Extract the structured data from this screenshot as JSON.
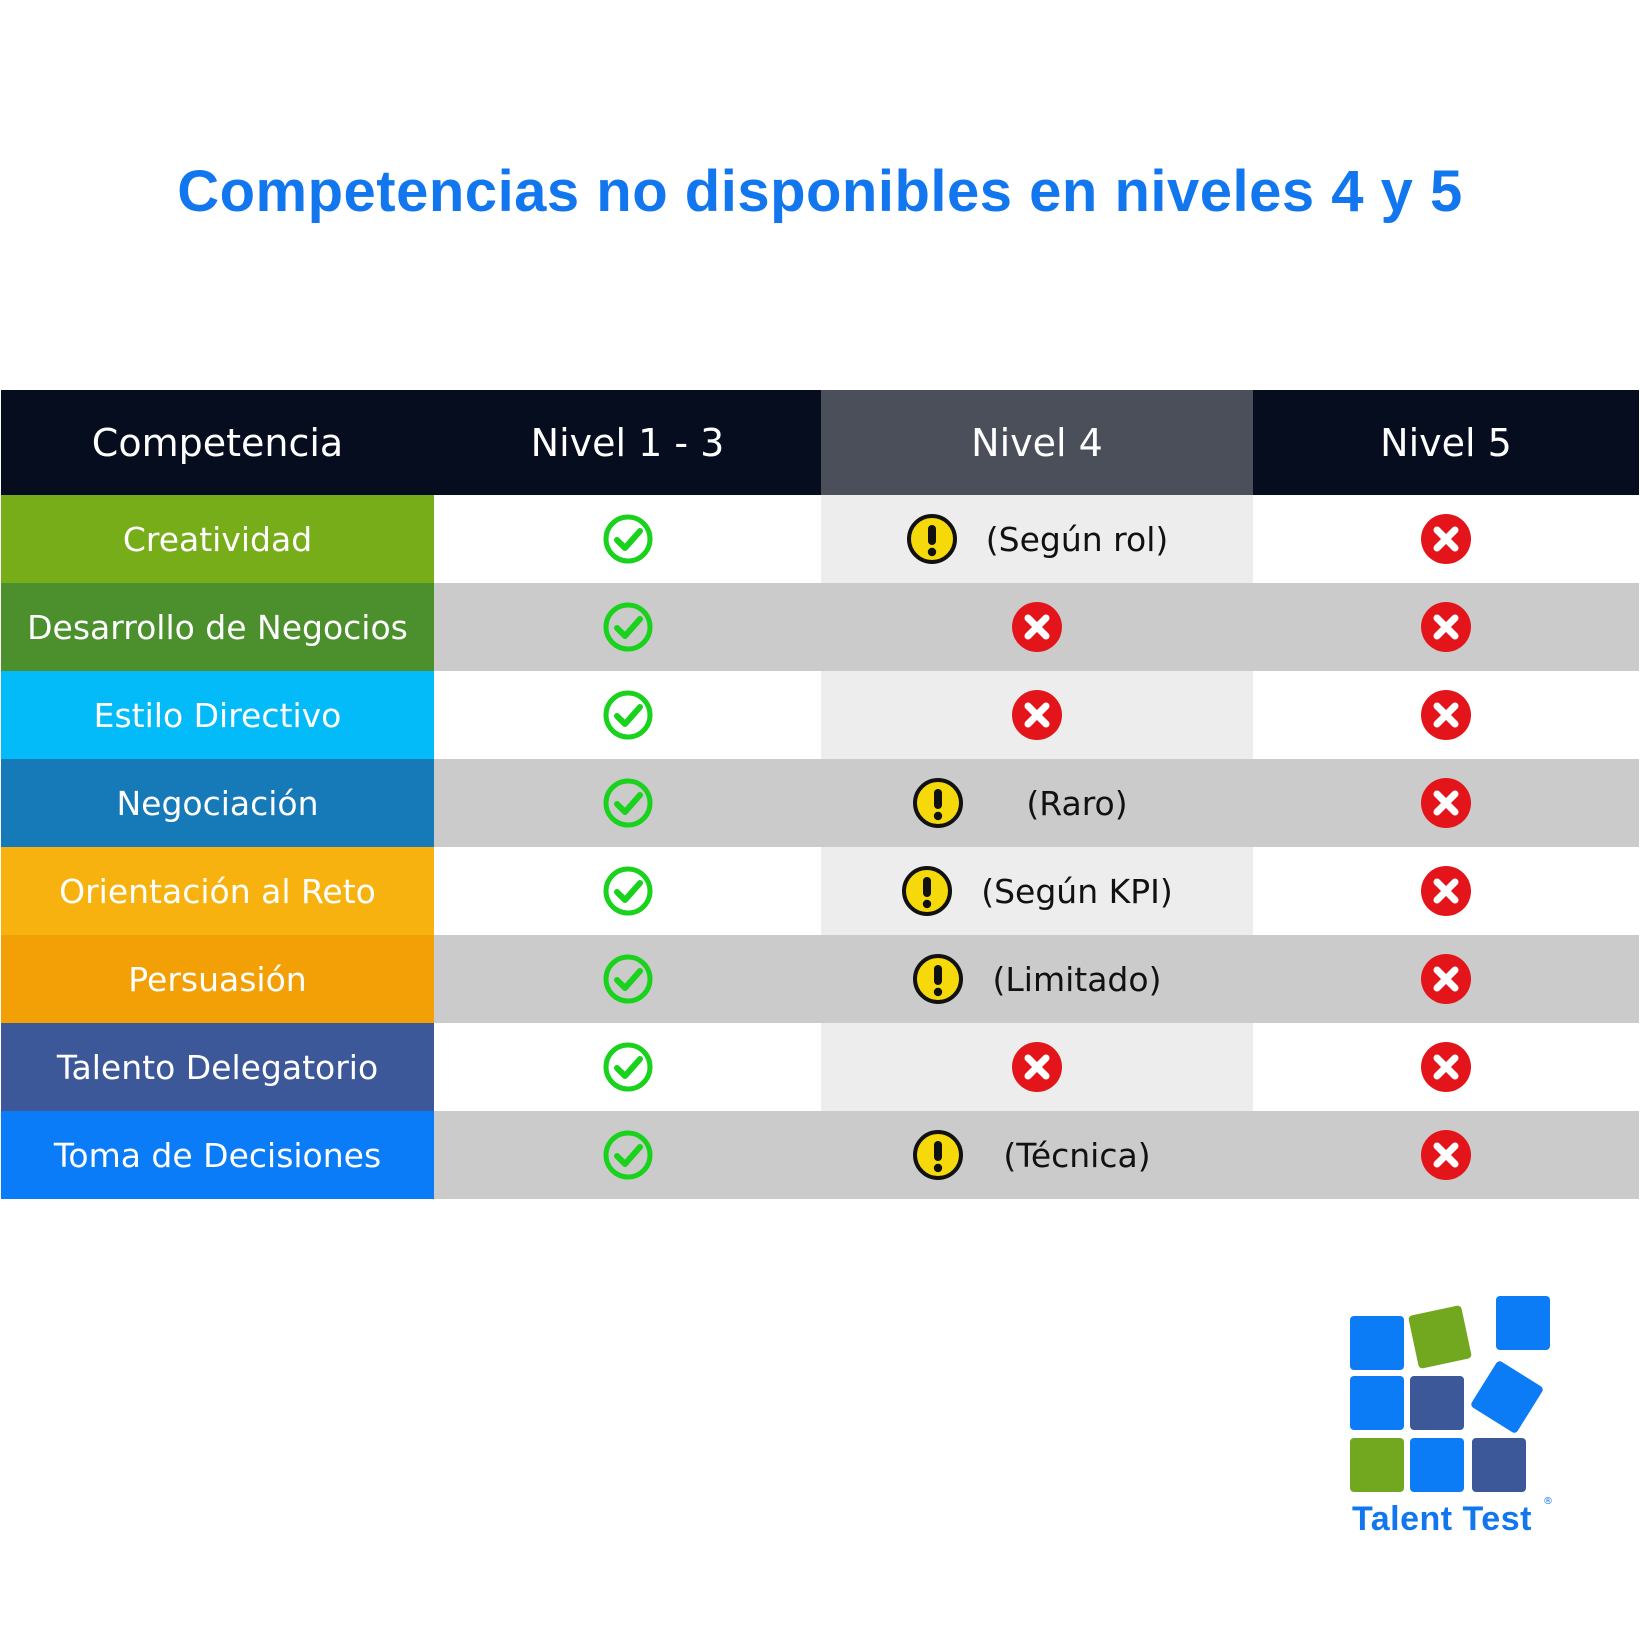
{
  "title": "Competencias no disponibles en niveles 4 y 5",
  "headers": [
    "Competencia",
    "Nivel 1 - 3",
    "Nivel 4",
    "Nivel 5"
  ],
  "colors": {
    "title": "#1277ee",
    "header_dark": "#050d1e",
    "header_mid": "#4a4f59",
    "check": "#19d21b",
    "cross": "#e4141b",
    "warning": "#f5d90a"
  },
  "rows": [
    {
      "competencia": "Creatividad",
      "color": "#76ad18",
      "nivel_1_3": "check-icon",
      "nivel_4": "warning-icon",
      "nivel_4_note": "(Según rol)",
      "nivel_5": "cross-icon"
    },
    {
      "competencia": "Desarrollo de Negocios",
      "color": "#4b902c",
      "nivel_1_3": "check-icon",
      "nivel_4": "cross-icon",
      "nivel_4_note": "",
      "nivel_5": "cross-icon"
    },
    {
      "competencia": "Estilo Directivo",
      "color": "#03bbf8",
      "nivel_1_3": "check-icon",
      "nivel_4": "cross-icon",
      "nivel_4_note": "",
      "nivel_5": "cross-icon"
    },
    {
      "competencia": "Negociación",
      "color": "#1679b8",
      "nivel_1_3": "check-icon",
      "nivel_4": "warning-icon",
      "nivel_4_note": "(Raro)",
      "nivel_5": "cross-icon"
    },
    {
      "competencia": "Orientación al Reto",
      "color": "#f7b20f",
      "nivel_1_3": "check-icon",
      "nivel_4": "warning-icon",
      "nivel_4_note": "(Según KPI)",
      "nivel_5": "cross-icon"
    },
    {
      "competencia": "Persuasión",
      "color": "#f2a005",
      "nivel_1_3": "check-icon",
      "nivel_4": "warning-icon",
      "nivel_4_note": "(Limitado)",
      "nivel_5": "cross-icon"
    },
    {
      "competencia": "Talento Delegatorio",
      "color": "#3d5899",
      "nivel_1_3": "check-icon",
      "nivel_4": "cross-icon",
      "nivel_4_note": "",
      "nivel_5": "cross-icon"
    },
    {
      "competencia": "Toma de Decisiones",
      "color": "#0a7cf7",
      "nivel_1_3": "check-icon",
      "nivel_4": "warning-icon",
      "nivel_4_note": "(Técnica)",
      "nivel_5": "cross-icon"
    }
  ],
  "logo": {
    "text": "Talent Test",
    "registered": "®",
    "square_colors": [
      "#0b7cf6",
      "#72a820",
      "#3d5899"
    ]
  }
}
